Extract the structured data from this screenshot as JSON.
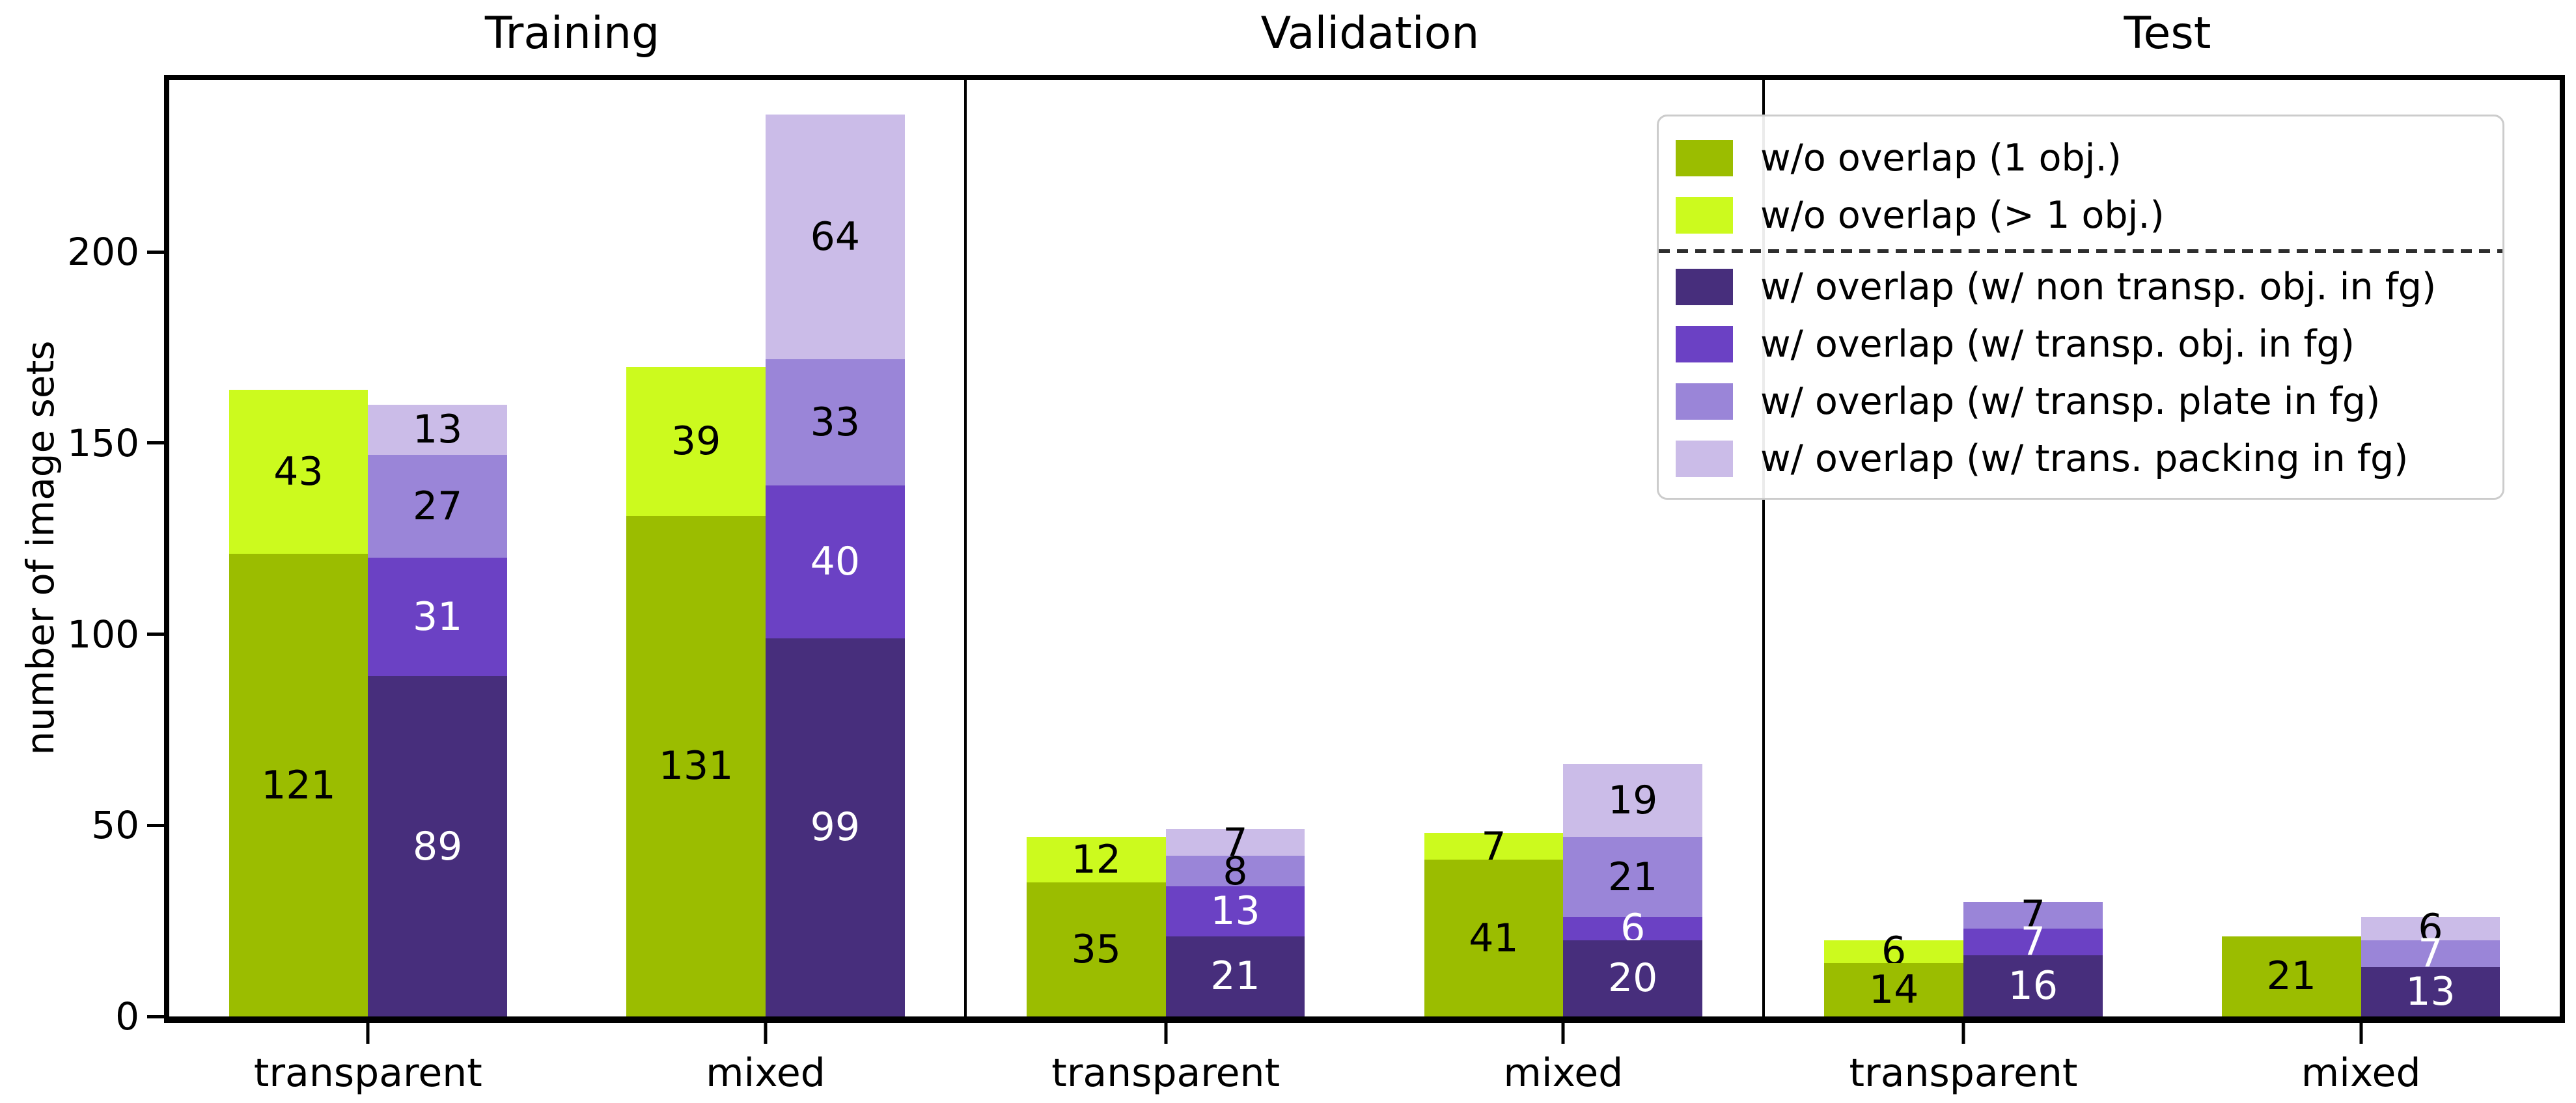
{
  "chart_data": {
    "type": "bar",
    "stacked": true,
    "ylabel": "number of image sets",
    "ylim": [
      0,
      245
    ],
    "yticks": [
      0,
      50,
      100,
      150,
      200
    ],
    "grid": false,
    "categories": [
      "transparent",
      "mixed"
    ],
    "panel_titles": [
      "Training",
      "Validation",
      "Test"
    ],
    "legend": {
      "position": "upper right",
      "divider_after_entry": 2,
      "entries": [
        {
          "label": "w/o overlap (1 obj.)",
          "color": "#9BBD00"
        },
        {
          "label": "w/o overlap (> 1 obj.)",
          "color": "#CCFA1E"
        },
        {
          "label": "w/ overlap (w/ non transp. obj. in fg)",
          "color": "#472E7C"
        },
        {
          "label": "w/ overlap (w/ transp. obj. in fg)",
          "color": "#6B41C4"
        },
        {
          "label": "w/ overlap (w/ transp. plate in fg)",
          "color": "#9A85D8"
        },
        {
          "label": "w/ overlap (w/ trans. packing in fg)",
          "color": "#CBBCE8"
        }
      ]
    },
    "panels": [
      {
        "title": "Training",
        "groups": [
          {
            "category": "transparent",
            "bars": [
              {
                "name": "without-overlap",
                "segments": [
                  {
                    "series": 0,
                    "value": 121,
                    "label_color": "black"
                  },
                  {
                    "series": 1,
                    "value": 43,
                    "label_color": "black"
                  }
                ]
              },
              {
                "name": "with-overlap",
                "segments": [
                  {
                    "series": 2,
                    "value": 89,
                    "label_color": "white"
                  },
                  {
                    "series": 3,
                    "value": 31,
                    "label_color": "white"
                  },
                  {
                    "series": 4,
                    "value": 27,
                    "label_color": "black"
                  },
                  {
                    "series": 5,
                    "value": 13,
                    "label_color": "black"
                  }
                ]
              }
            ]
          },
          {
            "category": "mixed",
            "bars": [
              {
                "name": "without-overlap",
                "segments": [
                  {
                    "series": 0,
                    "value": 131,
                    "label_color": "black"
                  },
                  {
                    "series": 1,
                    "value": 39,
                    "label_color": "black"
                  }
                ]
              },
              {
                "name": "with-overlap",
                "segments": [
                  {
                    "series": 2,
                    "value": 99,
                    "label_color": "white"
                  },
                  {
                    "series": 3,
                    "value": 40,
                    "label_color": "white"
                  },
                  {
                    "series": 4,
                    "value": 33,
                    "label_color": "black"
                  },
                  {
                    "series": 5,
                    "value": 64,
                    "label_color": "black"
                  }
                ]
              }
            ]
          }
        ]
      },
      {
        "title": "Validation",
        "groups": [
          {
            "category": "transparent",
            "bars": [
              {
                "name": "without-overlap",
                "segments": [
                  {
                    "series": 0,
                    "value": 35,
                    "label_color": "black"
                  },
                  {
                    "series": 1,
                    "value": 12,
                    "label_color": "black"
                  }
                ]
              },
              {
                "name": "with-overlap",
                "segments": [
                  {
                    "series": 2,
                    "value": 21,
                    "label_color": "white"
                  },
                  {
                    "series": 3,
                    "value": 13,
                    "label_color": "white"
                  },
                  {
                    "series": 4,
                    "value": 8,
                    "label_color": "black"
                  },
                  {
                    "series": 5,
                    "value": 7,
                    "label_color": "black"
                  }
                ]
              }
            ]
          },
          {
            "category": "mixed",
            "bars": [
              {
                "name": "without-overlap",
                "segments": [
                  {
                    "series": 0,
                    "value": 41,
                    "label_color": "black"
                  },
                  {
                    "series": 1,
                    "value": 7,
                    "label_color": "black"
                  }
                ]
              },
              {
                "name": "with-overlap",
                "segments": [
                  {
                    "series": 2,
                    "value": 20,
                    "label_color": "white"
                  },
                  {
                    "series": 3,
                    "value": 6,
                    "label_color": "white"
                  },
                  {
                    "series": 4,
                    "value": 21,
                    "label_color": "black"
                  },
                  {
                    "series": 5,
                    "value": 19,
                    "label_color": "black"
                  }
                ]
              }
            ]
          }
        ]
      },
      {
        "title": "Test",
        "groups": [
          {
            "category": "transparent",
            "bars": [
              {
                "name": "without-overlap",
                "segments": [
                  {
                    "series": 0,
                    "value": 14,
                    "label_color": "black"
                  },
                  {
                    "series": 1,
                    "value": 6,
                    "label_color": "black"
                  }
                ]
              },
              {
                "name": "with-overlap",
                "segments": [
                  {
                    "series": 2,
                    "value": 16,
                    "label_color": "white"
                  },
                  {
                    "series": 3,
                    "value": 7,
                    "label_color": "white"
                  },
                  {
                    "series": 4,
                    "value": 7,
                    "label_color": "black"
                  }
                ]
              }
            ]
          },
          {
            "category": "mixed",
            "bars": [
              {
                "name": "without-overlap",
                "segments": [
                  {
                    "series": 0,
                    "value": 21,
                    "label_color": "black"
                  }
                ]
              },
              {
                "name": "with-overlap",
                "segments": [
                  {
                    "series": 2,
                    "value": 13,
                    "label_color": "white"
                  },
                  {
                    "series": 4,
                    "value": 7,
                    "label_color": "white"
                  },
                  {
                    "series": 5,
                    "value": 6,
                    "label_color": "black"
                  }
                ]
              }
            ]
          }
        ]
      }
    ]
  }
}
